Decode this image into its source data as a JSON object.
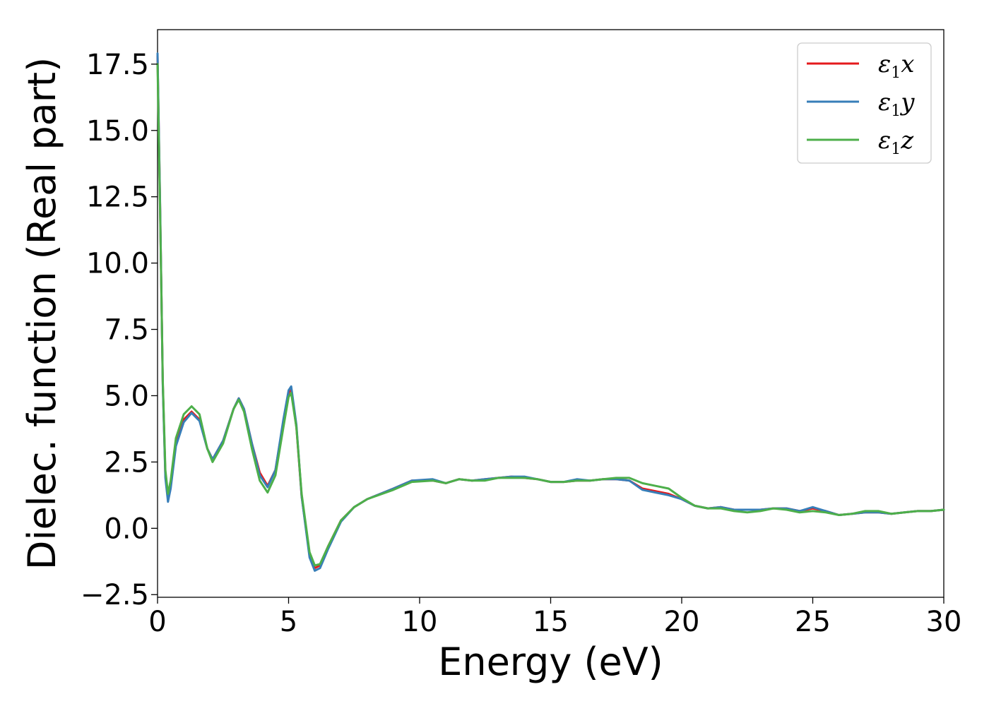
{
  "chart_data": {
    "type": "line",
    "xlabel": "Energy (eV)",
    "ylabel": "Dielec. function (Real part)",
    "xlim": [
      0,
      30
    ],
    "ylim": [
      -2.6,
      18.8
    ],
    "xticks": [
      0,
      5,
      10,
      15,
      20,
      25,
      30
    ],
    "xtick_labels": [
      "0",
      "5",
      "10",
      "15",
      "20",
      "25",
      "30"
    ],
    "yticks": [
      -2.5,
      0.0,
      2.5,
      5.0,
      7.5,
      10.0,
      12.5,
      15.0,
      17.5
    ],
    "ytick_labels": [
      "−2.5",
      "0.0",
      "2.5",
      "5.0",
      "7.5",
      "10.0",
      "12.5",
      "15.0",
      "17.5"
    ],
    "grid": false,
    "legend_position": "top-right",
    "x": [
      0.0,
      0.1,
      0.2,
      0.3,
      0.4,
      0.5,
      0.7,
      1.0,
      1.3,
      1.6,
      1.9,
      2.1,
      2.5,
      2.9,
      3.1,
      3.3,
      3.6,
      3.9,
      4.2,
      4.5,
      4.8,
      5.0,
      5.1,
      5.3,
      5.5,
      5.8,
      6.0,
      6.2,
      6.5,
      7.0,
      7.5,
      8.0,
      9.0,
      9.7,
      10.5,
      11.0,
      11.5,
      12.0,
      12.5,
      13.0,
      13.5,
      14.0,
      14.5,
      15.0,
      15.5,
      16.0,
      16.5,
      17.0,
      17.5,
      18.0,
      18.5,
      19.0,
      19.5,
      20.0,
      20.5,
      21.0,
      21.5,
      22.0,
      22.5,
      23.0,
      23.5,
      24.0,
      24.5,
      25.0,
      25.5,
      26.0,
      26.5,
      27.0,
      27.5,
      28.0,
      28.5,
      29.0,
      29.5,
      30.0
    ],
    "series": [
      {
        "name": "x",
        "color": "#e41a1c",
        "values": [
          17.8,
          12.0,
          5.5,
          2.0,
          1.1,
          1.6,
          3.2,
          4.1,
          4.4,
          4.1,
          3.0,
          2.6,
          3.3,
          4.5,
          4.9,
          4.5,
          3.2,
          2.1,
          1.6,
          2.2,
          4.0,
          5.1,
          5.25,
          3.8,
          1.2,
          -1.0,
          -1.5,
          -1.4,
          -0.7,
          0.3,
          0.8,
          1.1,
          1.5,
          1.8,
          1.8,
          1.7,
          1.85,
          1.8,
          1.85,
          1.9,
          1.95,
          1.9,
          1.85,
          1.75,
          1.75,
          1.8,
          1.8,
          1.85,
          1.85,
          1.8,
          1.5,
          1.4,
          1.3,
          1.1,
          0.85,
          0.75,
          0.8,
          0.7,
          0.7,
          0.7,
          0.75,
          0.75,
          0.65,
          0.75,
          0.65,
          0.5,
          0.55,
          0.6,
          0.6,
          0.55,
          0.6,
          0.65,
          0.65,
          0.7
        ]
      },
      {
        "name": "y",
        "color": "#377eb8",
        "values": [
          17.9,
          12.1,
          5.4,
          1.9,
          1.0,
          1.5,
          3.1,
          4.0,
          4.35,
          4.05,
          3.0,
          2.6,
          3.3,
          4.5,
          4.9,
          4.5,
          3.2,
          2.0,
          1.55,
          2.2,
          4.1,
          5.2,
          5.35,
          3.9,
          1.2,
          -1.1,
          -1.6,
          -1.5,
          -0.8,
          0.25,
          0.8,
          1.1,
          1.5,
          1.8,
          1.85,
          1.7,
          1.85,
          1.8,
          1.85,
          1.9,
          1.95,
          1.95,
          1.85,
          1.75,
          1.75,
          1.85,
          1.8,
          1.85,
          1.85,
          1.8,
          1.45,
          1.35,
          1.25,
          1.1,
          0.85,
          0.75,
          0.8,
          0.7,
          0.7,
          0.7,
          0.75,
          0.75,
          0.65,
          0.8,
          0.65,
          0.5,
          0.55,
          0.6,
          0.6,
          0.55,
          0.6,
          0.65,
          0.65,
          0.7
        ]
      },
      {
        "name": "z",
        "color": "#4daf4a",
        "values": [
          17.5,
          11.8,
          5.6,
          2.2,
          1.3,
          1.8,
          3.4,
          4.3,
          4.6,
          4.3,
          3.0,
          2.5,
          3.2,
          4.5,
          4.85,
          4.4,
          3.0,
          1.8,
          1.35,
          2.0,
          3.8,
          4.95,
          5.1,
          3.8,
          1.3,
          -0.9,
          -1.4,
          -1.35,
          -0.7,
          0.3,
          0.8,
          1.1,
          1.45,
          1.75,
          1.8,
          1.7,
          1.85,
          1.8,
          1.8,
          1.9,
          1.9,
          1.9,
          1.85,
          1.75,
          1.75,
          1.8,
          1.8,
          1.85,
          1.9,
          1.9,
          1.7,
          1.6,
          1.5,
          1.15,
          0.85,
          0.75,
          0.75,
          0.65,
          0.6,
          0.65,
          0.75,
          0.7,
          0.6,
          0.65,
          0.6,
          0.5,
          0.55,
          0.65,
          0.65,
          0.55,
          0.6,
          0.65,
          0.65,
          0.7
        ]
      }
    ]
  }
}
